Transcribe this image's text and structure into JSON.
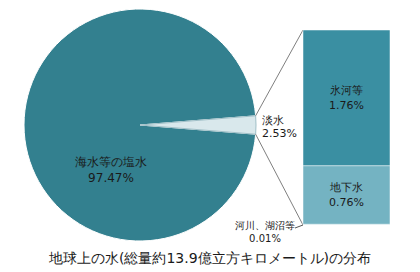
{
  "chart_data": {
    "type": "pie_of_bar",
    "title": "地球上の水(総量約13.9億立方キロメートル)の分布",
    "categories": [
      "海水等の塩水",
      "淡水"
    ],
    "values": [
      97.47,
      2.53
    ],
    "value_labels": [
      "97.47%",
      "2.53%"
    ],
    "colors": [
      "#33808f",
      "#d9e8ec"
    ],
    "data_labels": true,
    "breakdown": {
      "categories": [
        "氷河等",
        "地下水",
        "河川、湖沼等"
      ],
      "values": [
        1.76,
        0.76,
        0.01
      ],
      "value_labels": [
        "1.76%",
        "0.76%",
        "0.01%"
      ],
      "colors": [
        "#3a8fa2",
        "#74b3c2",
        "#d9ecf1"
      ]
    }
  }
}
